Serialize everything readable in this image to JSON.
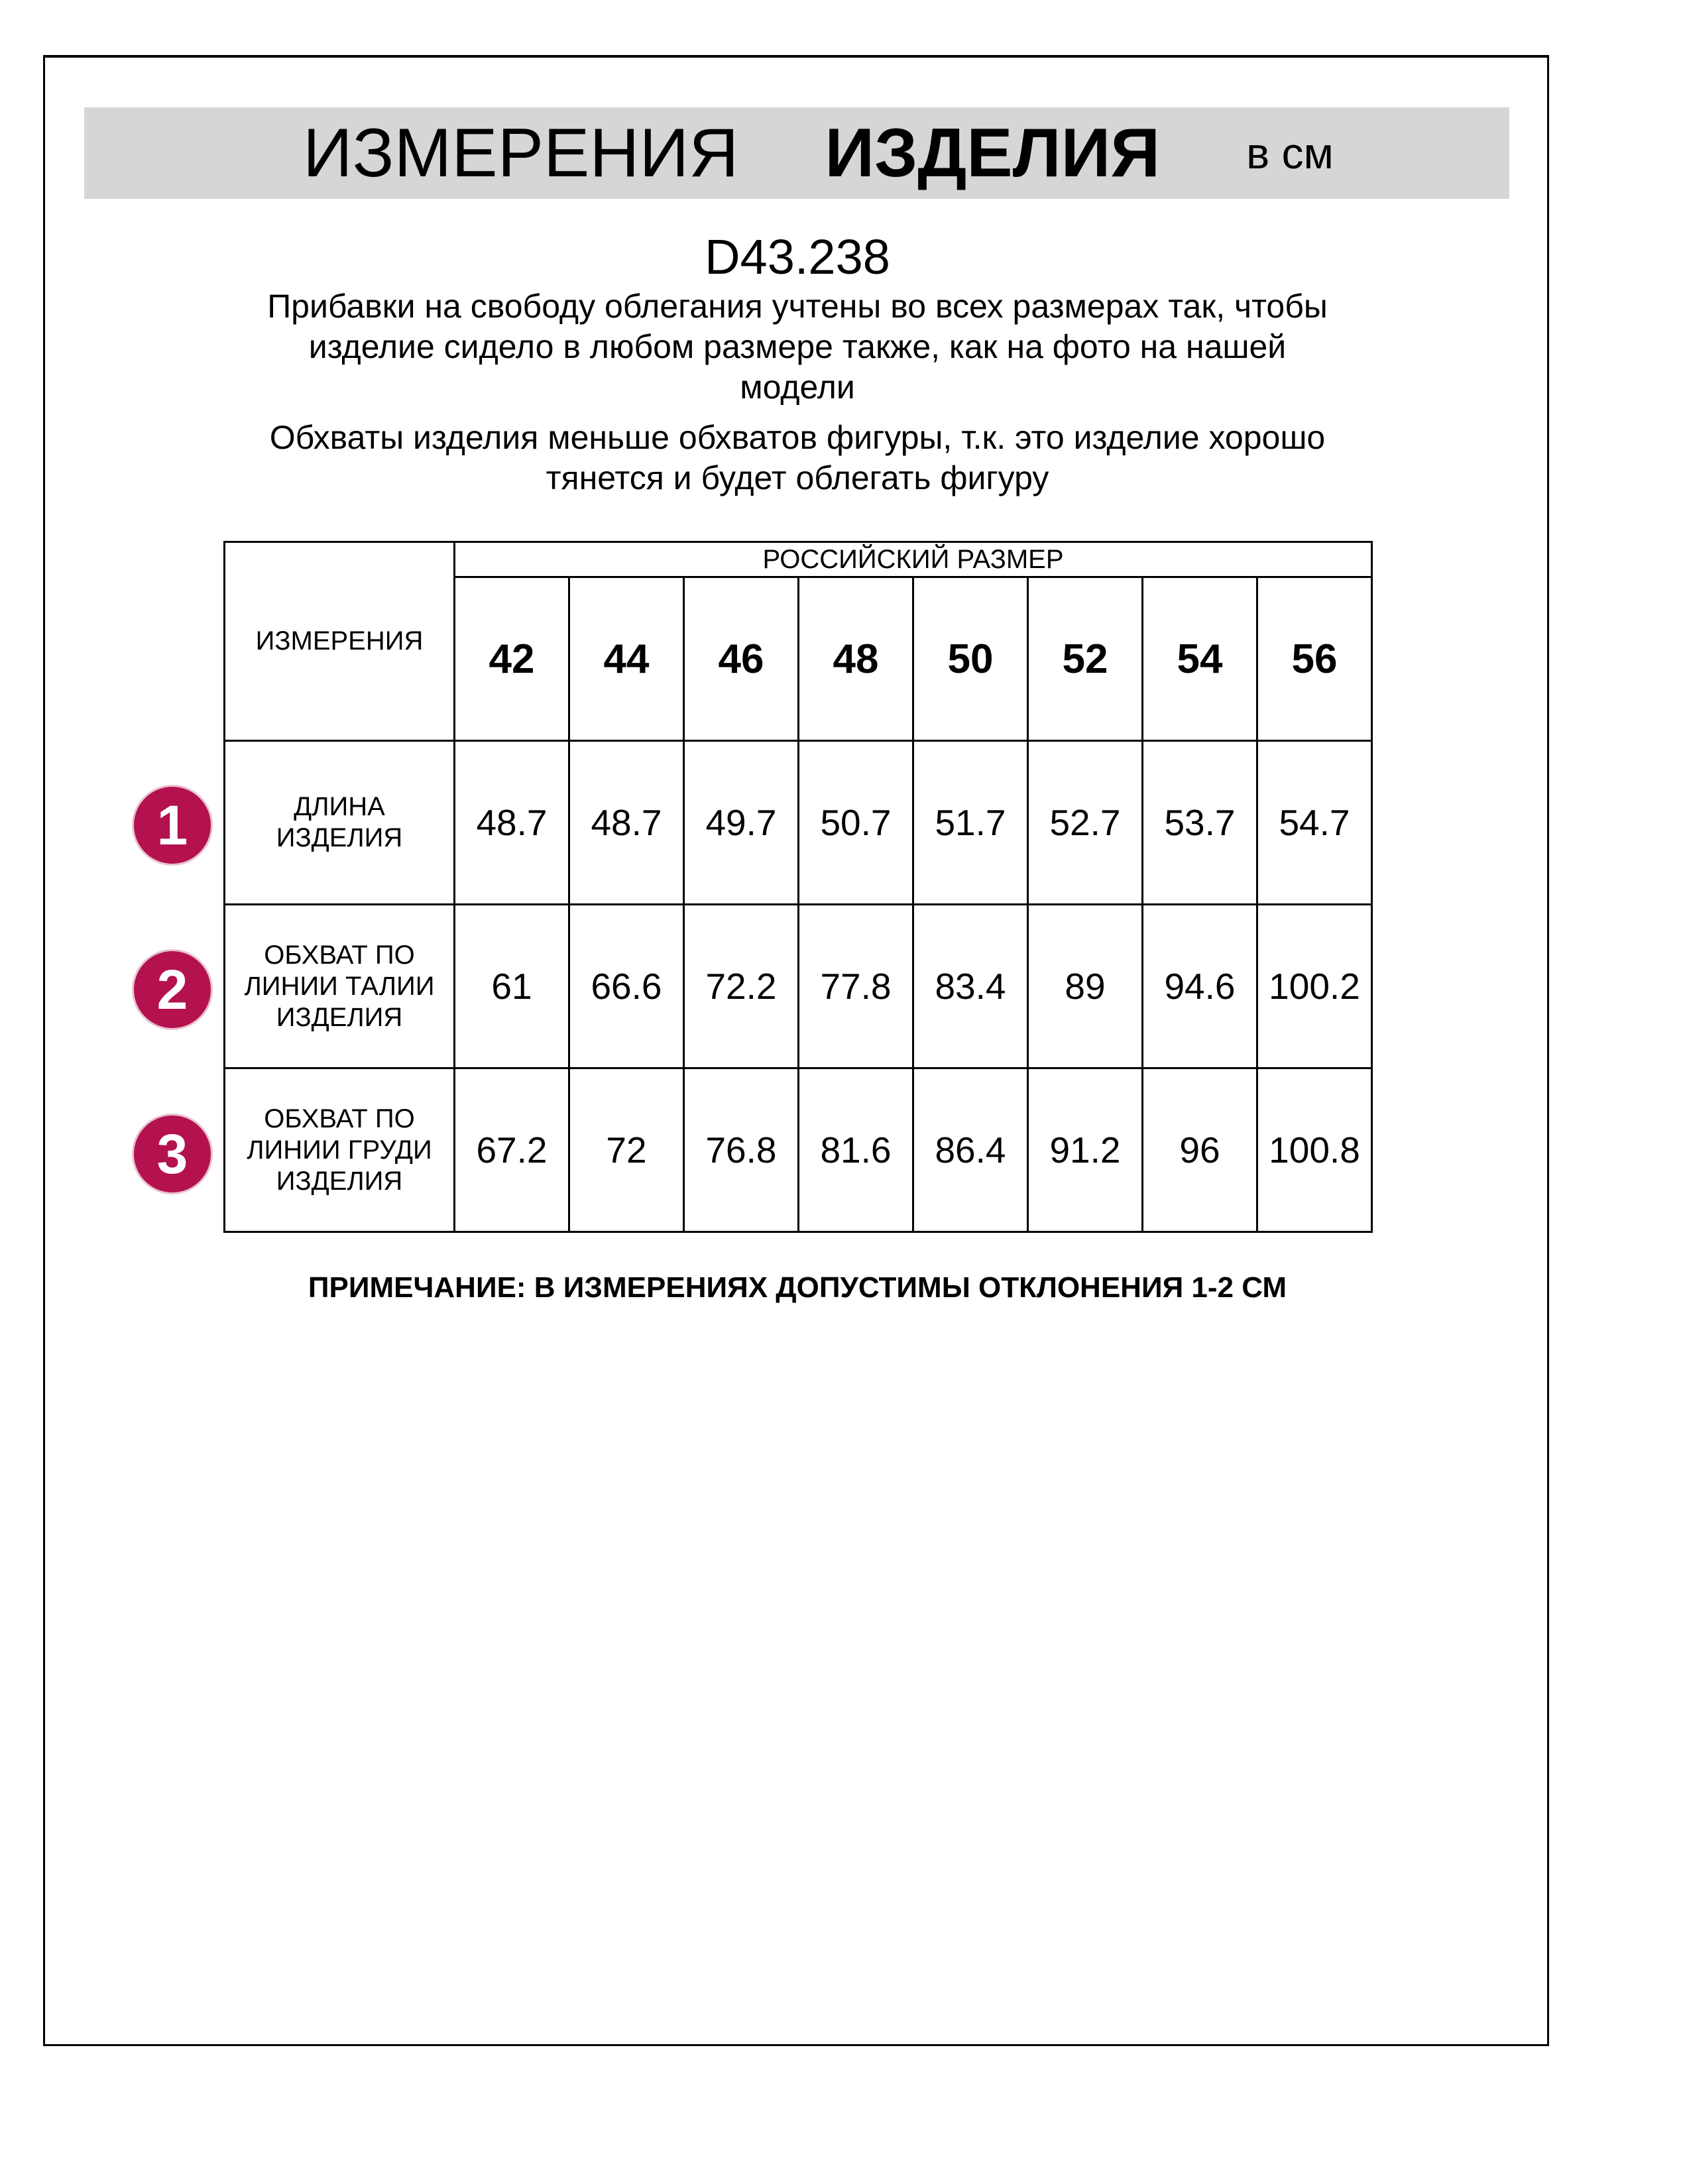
{
  "header": {
    "title_part1": "ИЗМЕРЕНИЯ",
    "title_part2": "ИЗДЕЛИЯ",
    "unit": "в см",
    "band_color": "#d6d6d6"
  },
  "article": "D43.238",
  "notes": [
    [
      "Прибавки на свободу облегания учтены во всех размерах так, чтобы",
      "изделие сидело в любом размере также, как на фото на нашей",
      "модели"
    ],
    [
      "Обхваты изделия меньше обхватов фигуры, т.к. это изделие хорошо",
      "тянется и будет облегать фигуру"
    ]
  ],
  "table": {
    "measure_header": "ИЗМЕРЕНИЯ",
    "size_header": "РОССИЙСКИЙ РАЗМЕР",
    "sizes": [
      "42",
      "44",
      "46",
      "48",
      "50",
      "52",
      "54",
      "56"
    ],
    "rows": [
      {
        "num": "1",
        "label": [
          "ДЛИНА",
          "ИЗДЕЛИЯ"
        ],
        "values": [
          "48.7",
          "48.7",
          "49.7",
          "50.7",
          "51.7",
          "52.7",
          "53.7",
          "54.7"
        ]
      },
      {
        "num": "2",
        "label": [
          "ОБХВАТ ПО",
          "ЛИНИИ ТАЛИИ",
          "ИЗДЕЛИЯ"
        ],
        "values": [
          "61",
          "66.6",
          "72.2",
          "77.8",
          "83.4",
          "89",
          "94.6",
          "100.2"
        ]
      },
      {
        "num": "3",
        "label": [
          "ОБХВАТ ПО",
          "ЛИНИИ ГРУДИ",
          "ИЗДЕЛИЯ"
        ],
        "values": [
          "67.2",
          "72",
          "76.8",
          "81.6",
          "86.4",
          "91.2",
          "96",
          "100.8"
        ]
      }
    ],
    "badge_color": "#b3124f"
  },
  "footnote": "ПРИМЕЧАНИЕ: В ИЗМЕРЕНИЯХ ДОПУСТИМЫ ОТКЛОНЕНИЯ 1-2 СМ"
}
